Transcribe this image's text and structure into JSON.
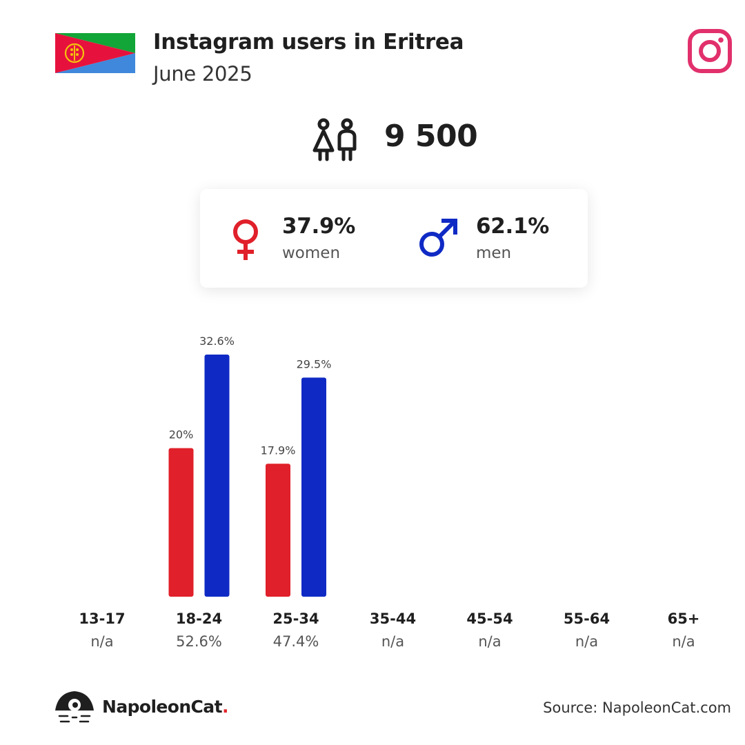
{
  "header": {
    "title": "Instagram users in Eritrea",
    "subtitle": "June 2025"
  },
  "summary": {
    "total_users": "9 500"
  },
  "gender": {
    "women": {
      "pct": "37.9%",
      "label": "women"
    },
    "men": {
      "pct": "62.1%",
      "label": "men"
    }
  },
  "colors": {
    "women": "#e0202a",
    "men": "#0f2ac4",
    "instagram": "#e1306c"
  },
  "chart_data": {
    "type": "bar",
    "categories": [
      "13-17",
      "18-24",
      "25-34",
      "35-44",
      "45-54",
      "55-64",
      "65+"
    ],
    "shares": [
      "n/a",
      "52.6%",
      "47.4%",
      "n/a",
      "n/a",
      "n/a",
      "n/a"
    ],
    "series": [
      {
        "name": "women",
        "values": [
          null,
          20,
          17.9,
          null,
          null,
          null,
          null
        ],
        "labels": [
          "",
          "20%",
          "17.9%",
          "",
          "",
          "",
          ""
        ]
      },
      {
        "name": "men",
        "values": [
          null,
          32.6,
          29.5,
          null,
          null,
          null,
          null
        ],
        "labels": [
          "",
          "32.6%",
          "29.5%",
          "",
          "",
          "",
          ""
        ]
      }
    ],
    "ylim": [
      0,
      32.6
    ],
    "grid": false,
    "title": "",
    "xlabel": "",
    "ylabel": ""
  },
  "footer": {
    "brand_name": "NapoleonCat",
    "brand_dot": ".",
    "source": "Source: NapoleonCat.com"
  }
}
